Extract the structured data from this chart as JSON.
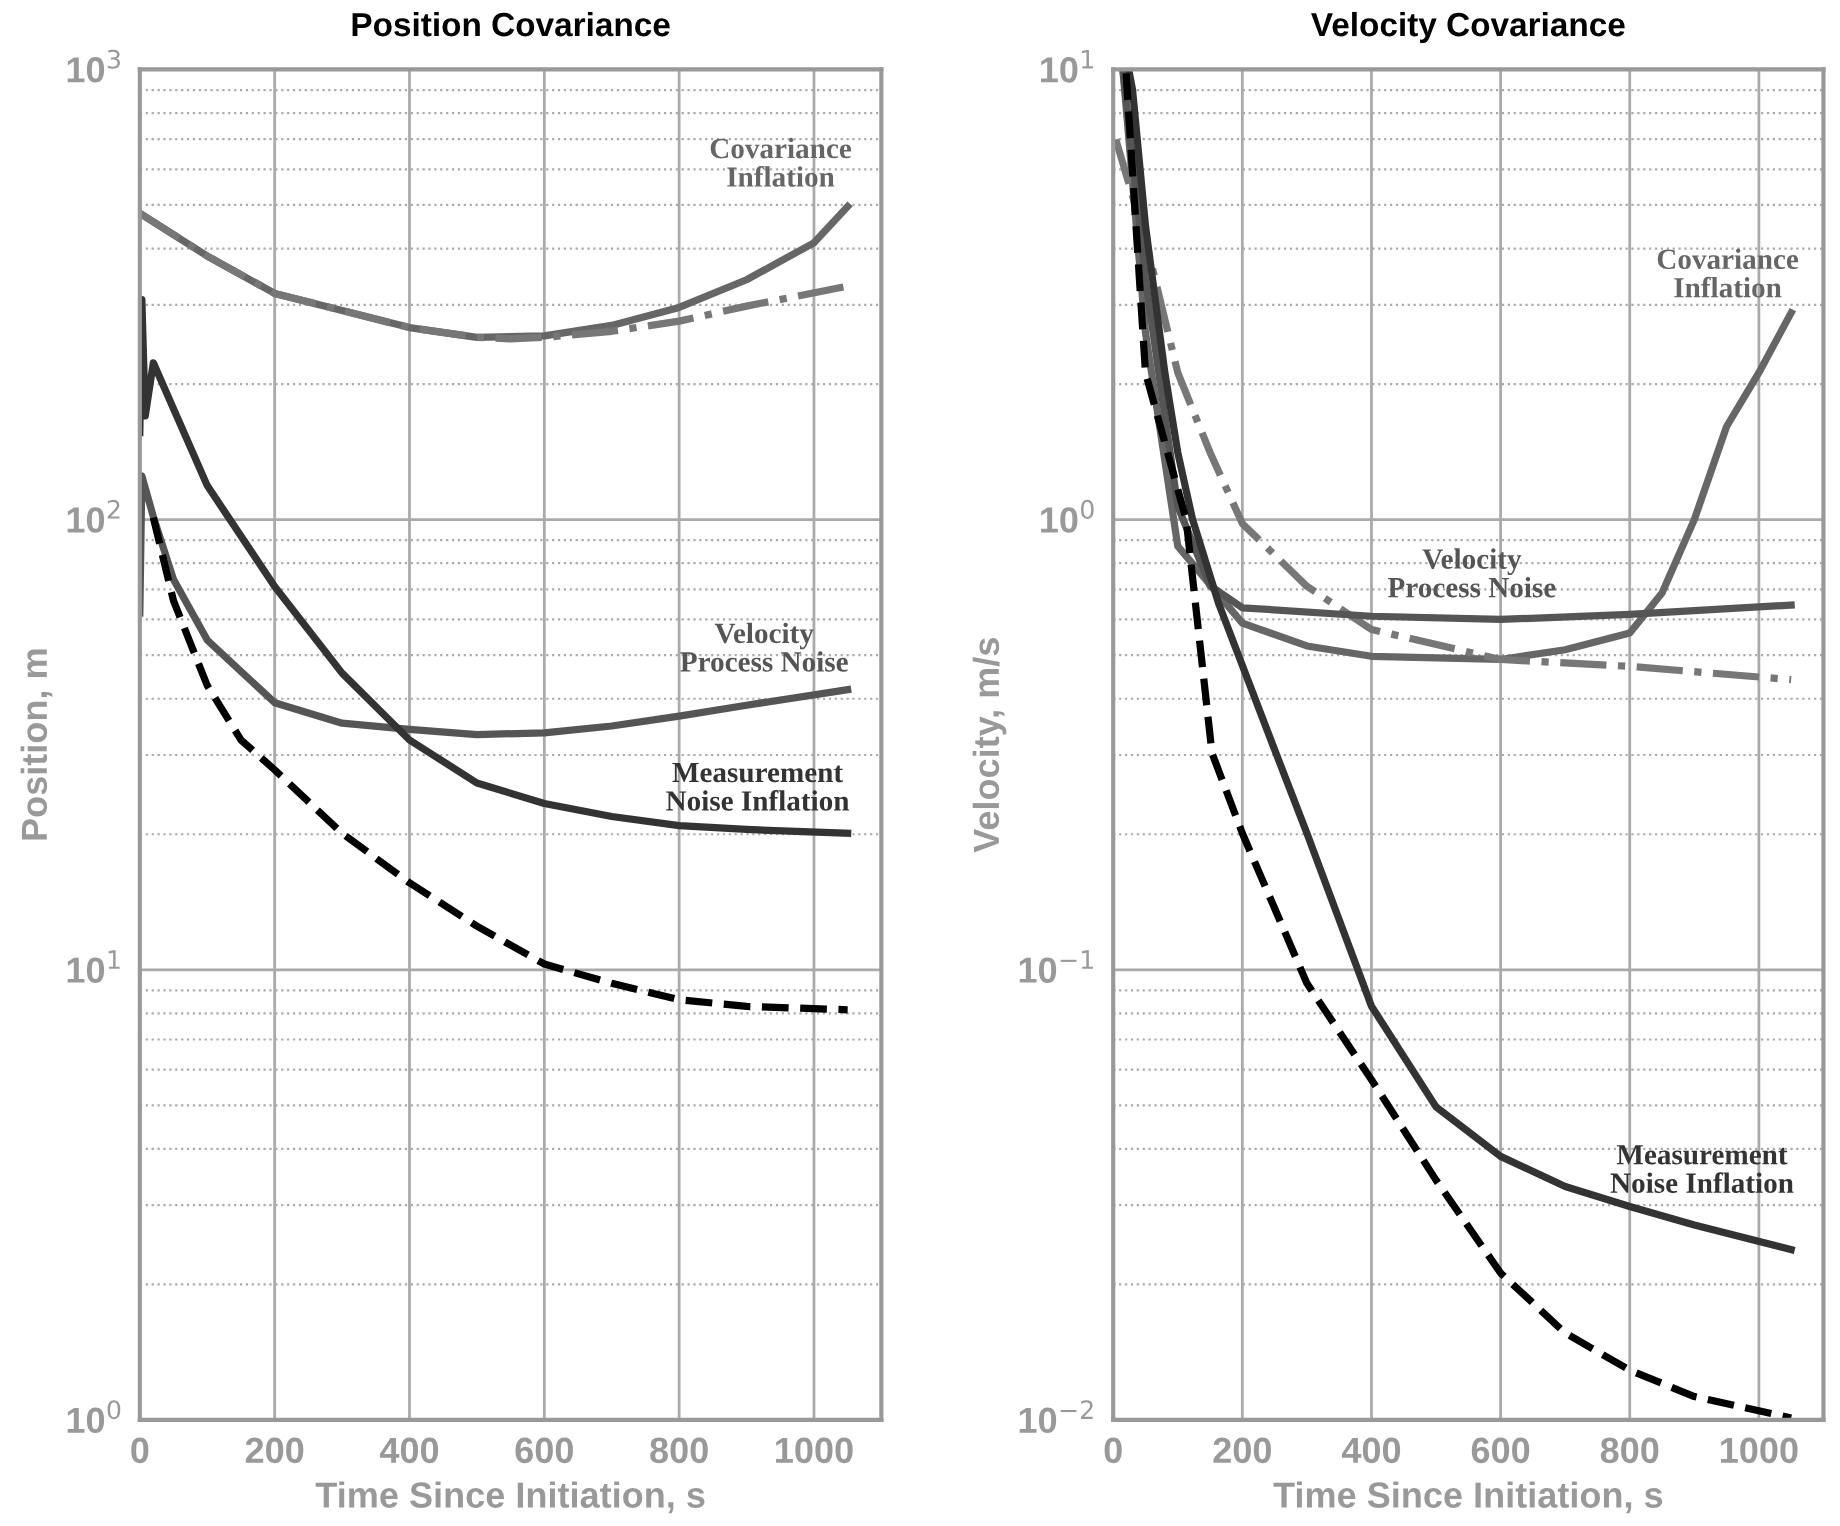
{
  "chart_data": [
    {
      "type": "line",
      "title": "Position Covariance",
      "xlabel": "Time Since Initiation, s",
      "ylabel": "Position, m",
      "log": "y",
      "grid": true,
      "xlim": [
        0,
        1100
      ],
      "xticks": [
        0,
        200,
        400,
        600,
        800,
        1000
      ],
      "ylim": [
        1,
        1000
      ],
      "yticks": [
        {
          "value": 1,
          "label": "10$^{0}$"
        },
        {
          "value": 10,
          "label": "10$^{1}$"
        },
        {
          "value": 100,
          "label": "10$^{2}$"
        },
        {
          "value": 1000,
          "label": "10$^{3}$"
        }
      ],
      "series": [
        {
          "name": "Covariance\nInflation",
          "color": "#666666",
          "line_style": "solid",
          "x": [
            0,
            100,
            200,
            400,
            500,
            600,
            700,
            800,
            900,
            1000,
            1050
          ],
          "values": [
            479,
            385,
            318,
            267,
            254,
            256,
            270,
            296,
            341,
            412,
            496
          ]
        },
        {
          "color": "#777777",
          "line_style": "dashdot",
          "x": [
            0,
            100,
            200,
            400,
            500,
            550,
            600,
            700,
            800,
            900,
            1050
          ],
          "values": [
            479,
            385,
            318,
            267,
            254,
            252,
            254,
            262,
            276,
            298,
            330
          ]
        },
        {
          "name": "Velocity\nProcess Noise",
          "color": "#555555",
          "line_style": "solid",
          "x": [
            0,
            3,
            20,
            50,
            100,
            200,
            300,
            400,
            500,
            600,
            700,
            800,
            900,
            1050
          ],
          "values": [
            62,
            125,
            101.6,
            73.6,
            54,
            39.2,
            35.3,
            34.2,
            33.3,
            33.6,
            34.8,
            36.6,
            38.7,
            41.9
          ]
        },
        {
          "name": "Measurement\nNoise Inflation",
          "color": "#333333",
          "line_style": "solid",
          "x": [
            0,
            3,
            8,
            20,
            100,
            200,
            300,
            400,
            500,
            600,
            700,
            800,
            900,
            1050
          ],
          "values": [
            156,
            308,
            170,
            223,
            119,
            71,
            45.6,
            32.4,
            26,
            23.4,
            21.9,
            20.9,
            20.5,
            20.1
          ]
        },
        {
          "color": "#000000",
          "line_style": "dashed",
          "x": [
            20,
            50,
            100,
            150,
            200,
            300,
            400,
            500,
            600,
            700,
            800,
            900,
            1050
          ],
          "values": [
            101,
            66,
            42.8,
            32.4,
            27.8,
            20.1,
            15.6,
            12.5,
            10.3,
            9.33,
            8.58,
            8.29,
            8.15
          ]
        }
      ]
    },
    {
      "type": "line",
      "title": "Velocity Covariance",
      "xlabel": "Time Since Initiation, s",
      "ylabel": "Velocity, m/s",
      "log": "y",
      "grid": true,
      "xlim": [
        0,
        1100
      ],
      "xticks": [
        0,
        200,
        400,
        600,
        800,
        1000
      ],
      "ylim": [
        0.01,
        10
      ],
      "yticks": [
        {
          "value": 0.01,
          "label": "10$^{−2}$"
        },
        {
          "value": 0.1,
          "label": "10$^{−1}$"
        },
        {
          "value": 1,
          "label": "10$^{0}$"
        },
        {
          "value": 10,
          "label": "10$^{1}$"
        }
      ],
      "series": [
        {
          "name": "Covariance\nInflation",
          "color": "#666666",
          "line_style": "solid",
          "x": [
            15,
            50,
            100,
            200,
            300,
            400,
            600,
            700,
            800,
            850,
            900,
            950,
            1000,
            1050
          ],
          "values": [
            10,
            2.6,
            0.873,
            0.589,
            0.524,
            0.497,
            0.489,
            0.514,
            0.56,
            0.687,
            1.0,
            1.61,
            2.12,
            2.88
          ]
        },
        {
          "color": "#777777",
          "line_style": "dashdot",
          "x": [
            4,
            50,
            100,
            150,
            200,
            300,
            400,
            600,
            800,
            1050
          ],
          "values": [
            6.99,
            4.19,
            2.12,
            1.41,
            0.98,
            0.711,
            0.57,
            0.489,
            0.472,
            0.441
          ]
        },
        {
          "name": "Velocity\nProcess Noise",
          "color": "#555555",
          "line_style": "solid",
          "x": [
            15,
            50,
            100,
            150,
            200,
            400,
            600,
            800,
            1050
          ],
          "values": [
            10,
            3.42,
            1.07,
            0.713,
            0.637,
            0.61,
            0.6,
            0.616,
            0.646
          ]
        },
        {
          "name": "Measurement\nNoise Inflation",
          "color": "#333333",
          "line_style": "solid",
          "x": [
            24,
            30,
            50,
            80,
            100,
            123,
            163,
            252,
            300,
            400,
            500,
            600,
            700,
            800,
            900,
            1050
          ],
          "values": [
            10,
            9,
            4.5,
            2.12,
            1.41,
            1.0,
            0.653,
            0.303,
            0.201,
            0.083,
            0.0496,
            0.0385,
            0.033,
            0.0298,
            0.0271,
            0.0239
          ]
        },
        {
          "color": "#000000",
          "line_style": "dashed",
          "x": [
            20,
            50,
            113,
            153,
            200,
            300,
            400,
            500,
            600,
            700,
            800,
            900,
            1050
          ],
          "values": [
            9.8,
            2.12,
            1.0,
            0.303,
            0.201,
            0.0933,
            0.057,
            0.0341,
            0.0212,
            0.0156,
            0.0129,
            0.01127,
            0.0101
          ]
        }
      ]
    }
  ]
}
